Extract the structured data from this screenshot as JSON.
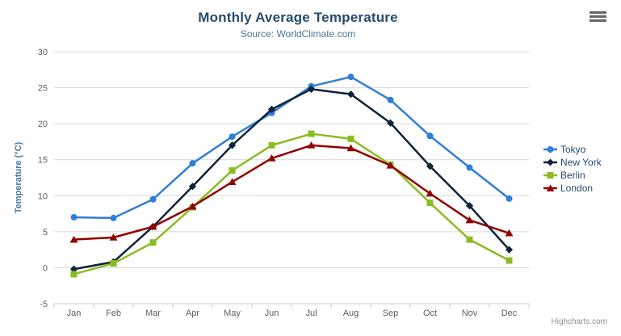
{
  "title": "Monthly Average Temperature",
  "subtitle": "Source: WorldClimate.com",
  "credits": "Highcharts.com",
  "colors": {
    "title_text": "#274b6d",
    "subtitle_text": "#4d759e",
    "grid_line": "#d8d8d8",
    "axis_line": "#c0d0e0",
    "tick_label": "#606060",
    "axis_title": "#4d759e",
    "legend_text": "#274b6d",
    "credits_text": "#909090",
    "menu_icon": "#666666",
    "background": "#ffffff"
  },
  "chart_data": {
    "type": "line",
    "title": "Monthly Average Temperature",
    "subtitle": "Source: WorldClimate.com",
    "ylabel": "Temperature (°C)",
    "ylim": [
      -5,
      30
    ],
    "yticks": [
      -5,
      0,
      5,
      10,
      15,
      20,
      25,
      30
    ],
    "grid": true,
    "legend_position": "right",
    "categories": [
      "Jan",
      "Feb",
      "Mar",
      "Apr",
      "May",
      "Jun",
      "Jul",
      "Aug",
      "Sep",
      "Oct",
      "Nov",
      "Dec"
    ],
    "series": [
      {
        "name": "Tokyo",
        "color": "#2f7ed8",
        "marker": "circle",
        "values": [
          7.0,
          6.9,
          9.5,
          14.5,
          18.2,
          21.5,
          25.2,
          26.5,
          23.3,
          18.3,
          13.9,
          9.6
        ]
      },
      {
        "name": "New York",
        "color": "#0d233a",
        "marker": "diamond",
        "values": [
          -0.2,
          0.8,
          5.7,
          11.3,
          17.0,
          22.0,
          24.8,
          24.1,
          20.1,
          14.1,
          8.6,
          2.5
        ]
      },
      {
        "name": "Berlin",
        "color": "#8bbc21",
        "marker": "square",
        "values": [
          -0.9,
          0.6,
          3.5,
          8.4,
          13.5,
          17.0,
          18.6,
          17.9,
          14.3,
          9.0,
          3.9,
          1.0
        ]
      },
      {
        "name": "London",
        "color": "#910000",
        "marker": "triangle",
        "values": [
          3.9,
          4.2,
          5.7,
          8.5,
          11.9,
          15.2,
          17.0,
          16.6,
          14.2,
          10.3,
          6.6,
          4.8
        ]
      }
    ]
  }
}
